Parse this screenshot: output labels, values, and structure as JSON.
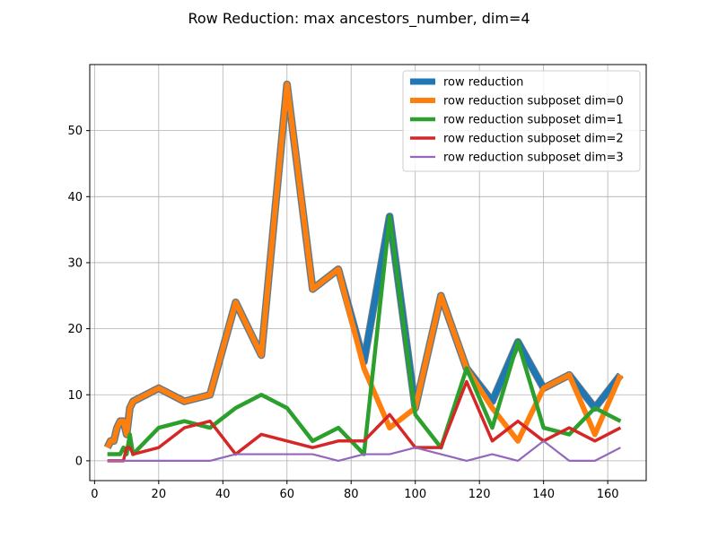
{
  "chart_data": {
    "type": "line",
    "title": "Row Reduction: max ancestors_number, dim=4",
    "xlabel": "",
    "ylabel": "",
    "xlim": [
      -1.5,
      172
    ],
    "ylim": [
      -3,
      60
    ],
    "xticks": [
      0,
      20,
      40,
      60,
      80,
      100,
      120,
      140,
      160
    ],
    "yticks": [
      0,
      10,
      20,
      30,
      40,
      50
    ],
    "grid": true,
    "legend_position": "top-right",
    "x": [
      4,
      5,
      6,
      7,
      8,
      9,
      10,
      11,
      12,
      20,
      28,
      36,
      44,
      52,
      60,
      68,
      76,
      84,
      92,
      100,
      108,
      116,
      124,
      132,
      140,
      148,
      156,
      164
    ],
    "series": [
      {
        "name": "row reduction",
        "color": "#1f77b4",
        "values": [
          2,
          3,
          3,
          5,
          6,
          6,
          4,
          8,
          9,
          11,
          9,
          10,
          24,
          16,
          57,
          26,
          29,
          15,
          37,
          8,
          25,
          14,
          9,
          18,
          11,
          13,
          8,
          13
        ]
      },
      {
        "name": "row reduction subposet dim=0",
        "color": "#ff7f0e",
        "values": [
          2,
          3,
          3,
          5,
          6,
          6,
          4,
          8,
          9,
          11,
          9,
          10,
          24,
          16,
          57,
          26,
          29,
          14,
          5,
          8,
          25,
          14,
          8,
          3,
          11,
          13,
          4,
          13
        ]
      },
      {
        "name": "row reduction subposet dim=1",
        "color": "#2ca02c",
        "values": [
          1,
          1,
          1,
          1,
          1,
          2,
          1,
          4,
          1,
          5,
          6,
          5,
          8,
          10,
          8,
          3,
          5,
          1,
          37,
          7,
          2,
          14,
          5,
          18,
          5,
          4,
          8,
          6
        ]
      },
      {
        "name": "row reduction subposet dim=2",
        "color": "#d62728",
        "values": [
          0,
          0,
          0,
          0,
          0,
          0,
          2,
          2,
          1,
          2,
          5,
          6,
          1,
          4,
          3,
          2,
          3,
          3,
          7,
          2,
          2,
          12,
          3,
          6,
          3,
          5,
          3,
          5
        ]
      },
      {
        "name": "row reduction subposet dim=3",
        "color": "#9467bd",
        "values": [
          0,
          0,
          0,
          0,
          0,
          0,
          0,
          0,
          0,
          0,
          0,
          0,
          1,
          1,
          1,
          1,
          0,
          1,
          1,
          2,
          1,
          0,
          1,
          0,
          3,
          0,
          0,
          2
        ]
      }
    ]
  }
}
